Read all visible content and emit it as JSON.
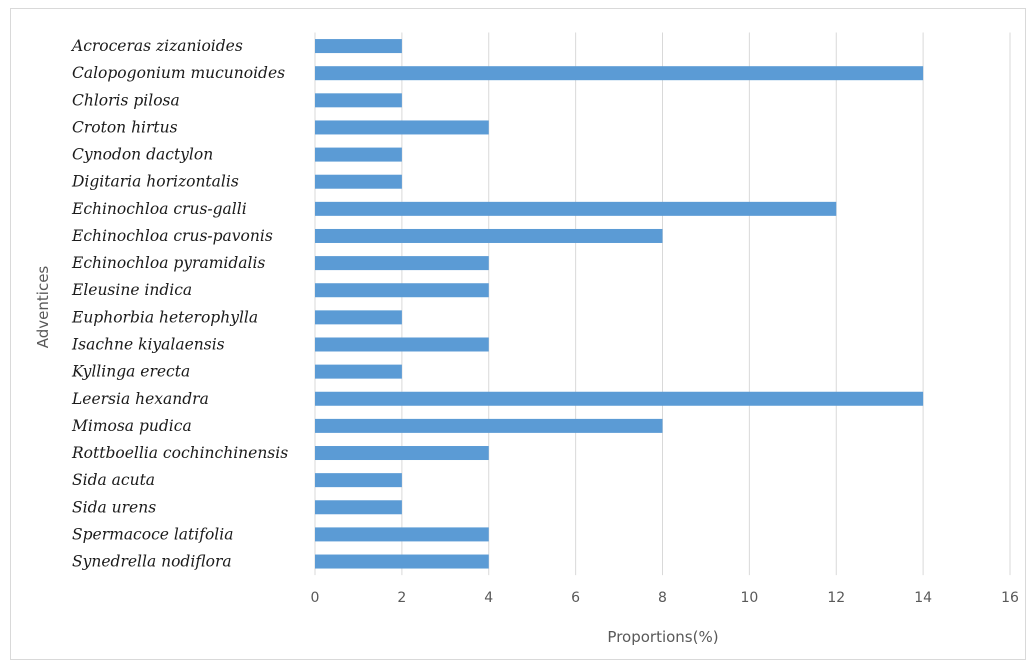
{
  "chart_data": {
    "type": "bar",
    "orientation": "horizontal",
    "categories": [
      "Acroceras zizanioides",
      "Calopogonium mucunoides",
      "Chloris pilosa",
      "Croton hirtus",
      "Cynodon dactylon",
      "Digitaria horizontalis",
      "Echinochloa crus-galli",
      "Echinochloa crus-pavonis",
      "Echinochloa pyramidalis",
      "Eleusine indica",
      "Euphorbia heterophylla",
      "Isachne kiyalaensis",
      "Kyllinga erecta",
      "Leersia hexandra",
      "Mimosa pudica",
      "Rottboellia cochinchinensis",
      "Sida acuta",
      "Sida urens",
      "Spermacoce latifolia",
      "Synedrella nodiflora"
    ],
    "values": [
      2,
      14,
      2,
      4,
      2,
      2,
      12,
      8,
      4,
      4,
      2,
      4,
      2,
      14,
      8,
      4,
      2,
      2,
      4,
      4
    ],
    "xlabel": "Proportions(%)",
    "ylabel": "Adventices",
    "xlim": [
      0,
      16
    ],
    "xticks": [
      0,
      2,
      4,
      6,
      8,
      10,
      12,
      14,
      16
    ],
    "grid": "vertical",
    "legend": "none",
    "bar_color": "#5b9bd5"
  }
}
